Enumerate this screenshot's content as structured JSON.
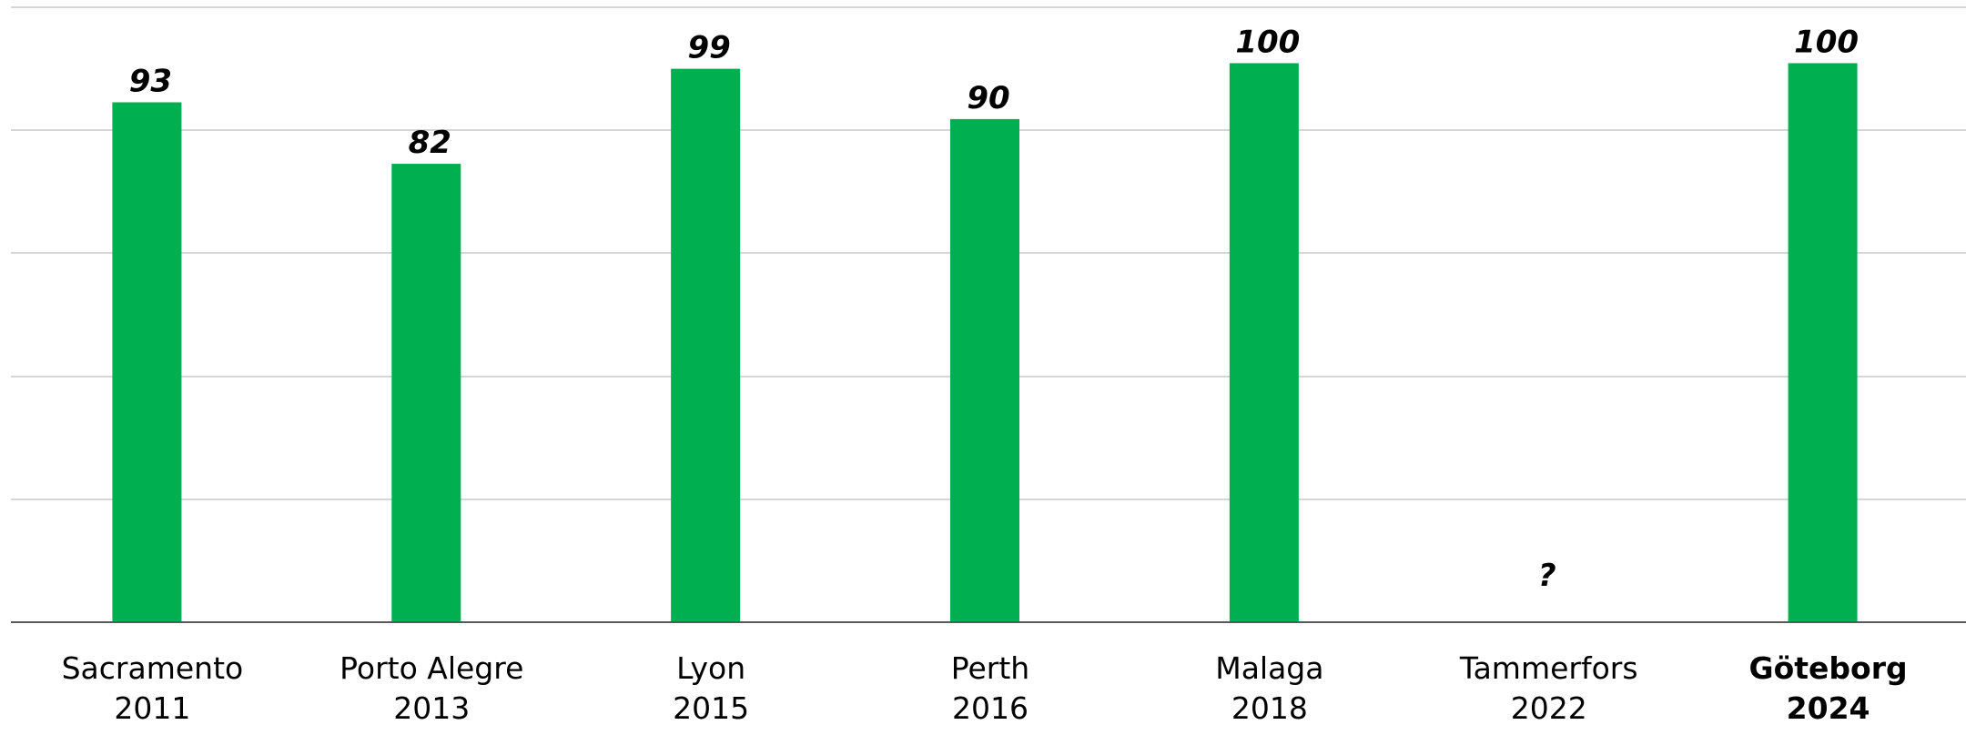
{
  "chart_data": {
    "type": "bar",
    "title": "",
    "xlabel": "",
    "ylabel": "",
    "ylim": [
      0,
      110
    ],
    "grid": true,
    "legend": "none",
    "categories": [
      {
        "city": "Sacramento",
        "year": "2011",
        "bold": false
      },
      {
        "city": "Porto Alegre",
        "year": "2013",
        "bold": false
      },
      {
        "city": "Lyon",
        "year": "2015",
        "bold": false
      },
      {
        "city": "Perth",
        "year": "2016",
        "bold": false
      },
      {
        "city": "Malaga",
        "year": "2018",
        "bold": false
      },
      {
        "city": "Tammerfors",
        "year": "2022",
        "bold": false
      },
      {
        "city": "Göteborg",
        "year": "2024",
        "bold": true
      }
    ],
    "values": [
      93,
      82,
      99,
      90,
      100,
      null,
      100
    ],
    "data_labels": [
      "93",
      "82",
      "99",
      "90",
      "100",
      "?",
      "100"
    ],
    "bar_color": "#00b050"
  }
}
